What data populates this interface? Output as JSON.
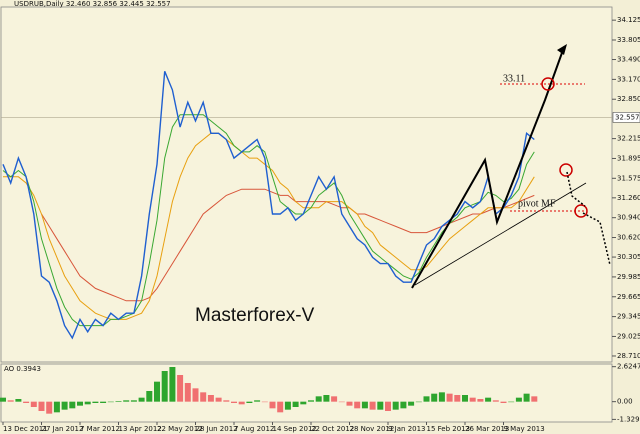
{
  "chart_data": {
    "type": "line",
    "title": "USDRUB,Daily  32.460 32.856 32.445 32.557",
    "categories": [
      "13 Dec 2011",
      null,
      null,
      null,
      null,
      "27 Jan 2012",
      null,
      null,
      null,
      null,
      "7 Mar 2012",
      null,
      null,
      null,
      null,
      "13 Apr 2012",
      null,
      null,
      null,
      null,
      "22 May 2012",
      null,
      null,
      null,
      null,
      "28 Jun 2012",
      null,
      null,
      null,
      null,
      "7 Aug 2012",
      null,
      null,
      null,
      null,
      "14 Sep 2012",
      null,
      null,
      null,
      null,
      "22 Oct 2012",
      null,
      null,
      null,
      null,
      "28 Nov 2012",
      null,
      null,
      null,
      null,
      "9 Jan 2013",
      null,
      null,
      null,
      null,
      "15 Feb 2013",
      null,
      null,
      null,
      null,
      "26 Mar 2013",
      null,
      null,
      null,
      null,
      "9 May 2013",
      null,
      null,
      null,
      null
    ],
    "series": [
      {
        "color": "#1f5fd0",
        "values": [
          31.8,
          31.5,
          31.9,
          31.6,
          31.0,
          30.0,
          29.9,
          29.6,
          29.2,
          29.0,
          29.3,
          29.1,
          29.3,
          29.2,
          29.4,
          29.3,
          29.4,
          29.4,
          30.0,
          31.0,
          31.8,
          33.3,
          33.0,
          32.4,
          32.8,
          32.5,
          32.8,
          32.3,
          32.3,
          32.2,
          31.9,
          32.0,
          32.1,
          32.2,
          31.9,
          31.0,
          31.0,
          31.1,
          30.9,
          31.0,
          31.3,
          31.6,
          31.4,
          31.6,
          31.0,
          30.8,
          30.6,
          30.5,
          30.3,
          30.2,
          30.2,
          30.0,
          29.9,
          29.9,
          30.2,
          30.5,
          30.6,
          30.8,
          30.9,
          31.0,
          31.2,
          31.1,
          31.2,
          31.6,
          31.0,
          31.1,
          31.3,
          31.6,
          32.3,
          32.2
        ]
      },
      {
        "color": "#3aa832",
        "values": [
          31.7,
          31.6,
          31.7,
          31.6,
          31.2,
          30.6,
          30.2,
          29.8,
          29.5,
          29.3,
          29.2,
          29.2,
          29.2,
          29.2,
          29.3,
          29.3,
          29.35,
          29.4,
          29.6,
          30.2,
          30.9,
          31.9,
          32.4,
          32.6,
          32.6,
          32.6,
          32.6,
          32.5,
          32.4,
          32.3,
          32.1,
          32.0,
          32.0,
          32.1,
          32.0,
          31.6,
          31.2,
          31.1,
          31.0,
          31.0,
          31.1,
          31.3,
          31.4,
          31.5,
          31.3,
          31.0,
          30.8,
          30.6,
          30.4,
          30.3,
          30.2,
          30.1,
          30.0,
          29.95,
          30.05,
          30.3,
          30.5,
          30.7,
          30.85,
          30.95,
          31.1,
          31.15,
          31.2,
          31.35,
          31.3,
          31.2,
          31.25,
          31.4,
          31.8,
          32.0
        ]
      },
      {
        "color": "#e8a010",
        "values": [
          31.6,
          31.6,
          31.6,
          31.5,
          31.3,
          31.0,
          30.6,
          30.3,
          30.0,
          29.8,
          29.6,
          29.5,
          29.4,
          29.35,
          29.3,
          29.3,
          29.3,
          29.35,
          29.4,
          29.6,
          30.0,
          30.6,
          31.2,
          31.6,
          31.9,
          32.1,
          32.2,
          32.3,
          32.3,
          32.2,
          32.1,
          32.0,
          31.9,
          31.9,
          31.8,
          31.7,
          31.5,
          31.4,
          31.2,
          31.1,
          31.1,
          31.1,
          31.2,
          31.2,
          31.2,
          31.1,
          31.0,
          30.8,
          30.7,
          30.5,
          30.4,
          30.3,
          30.2,
          30.1,
          30.1,
          30.15,
          30.3,
          30.45,
          30.6,
          30.7,
          30.8,
          30.9,
          31.0,
          31.1,
          31.1,
          31.1,
          31.1,
          31.2,
          31.4,
          31.6
        ]
      },
      {
        "color": "#d8563a",
        "values": [
          null,
          null,
          null,
          null,
          null,
          31.0,
          30.8,
          30.6,
          30.4,
          30.2,
          30.0,
          29.9,
          29.8,
          29.75,
          29.7,
          29.65,
          29.6,
          29.6,
          29.6,
          29.65,
          29.8,
          30.0,
          30.2,
          30.4,
          30.6,
          30.8,
          31.0,
          31.1,
          31.2,
          31.3,
          31.35,
          31.4,
          31.4,
          31.4,
          31.4,
          31.35,
          31.3,
          31.3,
          31.2,
          31.2,
          31.2,
          31.2,
          31.2,
          31.15,
          31.1,
          31.1,
          31.0,
          31.0,
          30.95,
          30.9,
          30.85,
          30.8,
          30.75,
          30.7,
          30.7,
          30.7,
          30.75,
          30.8,
          30.85,
          30.9,
          30.95,
          31.0,
          31.0,
          31.05,
          31.1,
          31.1,
          31.15,
          31.2,
          31.25,
          31.3
        ]
      }
    ],
    "ylim": [
      28.613,
      34.321
    ],
    "yticks": [
      34.125,
      33.805,
      {
        "value": 33.49,
        "label": "33.490"
      },
      {
        "value": 33.17,
        "label": "33.170"
      },
      {
        "value": 32.85,
        "label": "32.850"
      },
      32.215,
      31.895,
      31.575,
      {
        "value": 31.26,
        "label": "31.260"
      },
      {
        "value": 30.94,
        "label": "30.940"
      },
      {
        "value": 30.62,
        "label": "30.620"
      },
      30.305,
      29.985,
      29.665,
      29.345,
      29.025,
      {
        "value": 28.71,
        "label": "28.710"
      }
    ],
    "last_price": 32.557,
    "annotations": [
      "33.11",
      "pivot MF",
      "Masterforex-V"
    ],
    "ao_label": "AO 0.3943",
    "ao_values": [
      0.3,
      0.1,
      0.2,
      -0.1,
      -0.4,
      -0.7,
      -0.9,
      -0.8,
      -0.6,
      -0.5,
      -0.3,
      -0.2,
      -0.1,
      -0.1,
      0.0,
      0.05,
      0.1,
      0.1,
      0.3,
      0.8,
      1.5,
      2.3,
      2.6,
      2.0,
      1.4,
      1.0,
      0.7,
      0.5,
      0.3,
      0.1,
      -0.1,
      -0.2,
      -0.1,
      0.1,
      0.0,
      -0.5,
      -0.8,
      -0.6,
      -0.4,
      -0.2,
      0.1,
      0.4,
      0.5,
      0.4,
      0.0,
      -0.3,
      -0.5,
      -0.5,
      -0.6,
      -0.6,
      -0.7,
      -0.6,
      -0.5,
      -0.3,
      0.0,
      0.4,
      0.6,
      0.7,
      0.6,
      0.5,
      0.5,
      0.3,
      0.2,
      0.3,
      0.1,
      -0.1,
      0.0,
      0.3,
      0.6,
      0.4
    ],
    "ao_ylim": [
      -1.45,
      2.75
    ],
    "ao_yticks": [
      2.6247,
      {
        "value": 0,
        "label": "0.00"
      },
      -1.3295
    ],
    "ao_up_color": "#2ea52e",
    "ao_down_color": "#f07070"
  }
}
